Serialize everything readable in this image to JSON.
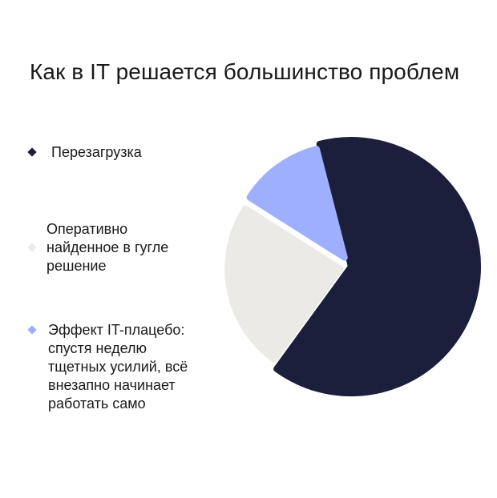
{
  "chart_data": {
    "type": "pie",
    "title": "Как в IT решается большинство проблем",
    "legend_position": "left",
    "slices": [
      {
        "label": "Перезагрузка",
        "value": 64,
        "color": "#1b1f3b"
      },
      {
        "label": "Оперативно\nнайденное в гугле\nрешение",
        "value": 24,
        "color": "#eceae6"
      },
      {
        "label": "Эффект IT-плацебо:\nспустя неделю\nтщетных усилий, всё\nвнезапно начинает\nработать само",
        "value": 12,
        "color": "#9eaffd"
      }
    ]
  }
}
